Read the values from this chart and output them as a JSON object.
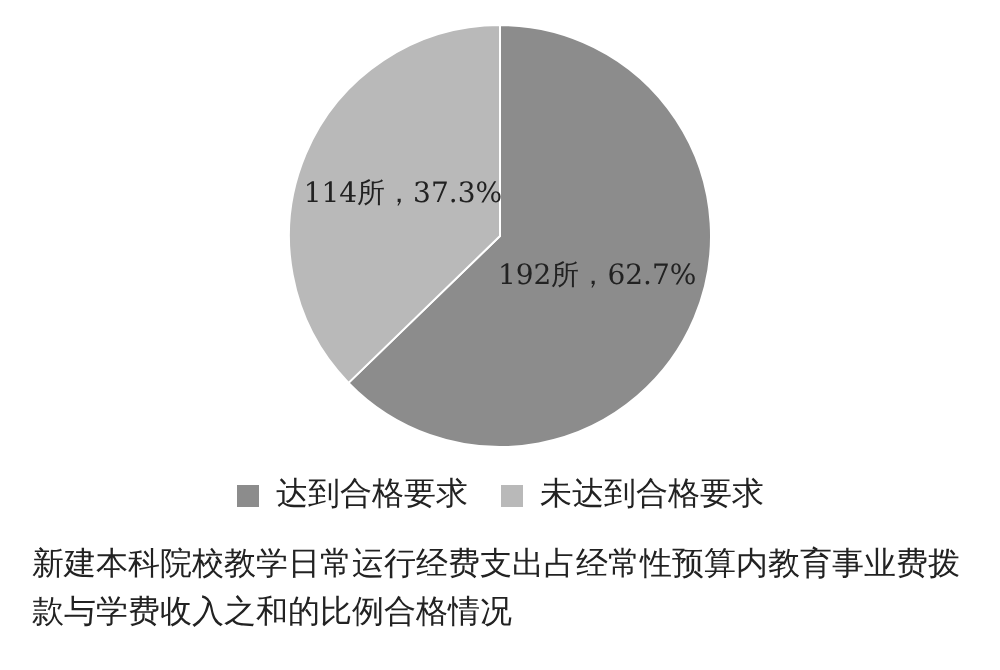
{
  "chart_data": {
    "type": "pie",
    "categories": [
      "达到合格要求",
      "未达到合格要求"
    ],
    "values": [
      192,
      114
    ],
    "colors": [
      "#8c8c8c",
      "#b9b9b9"
    ],
    "value_labels": [
      "192所，62.7%",
      "114所，37.3%"
    ],
    "legend": "bottom",
    "annotations": [
      "新建本科院校教学日常运行经费支出占经常性预算内教育事业费拨款与学费收入之和的比例合格情况"
    ]
  }
}
